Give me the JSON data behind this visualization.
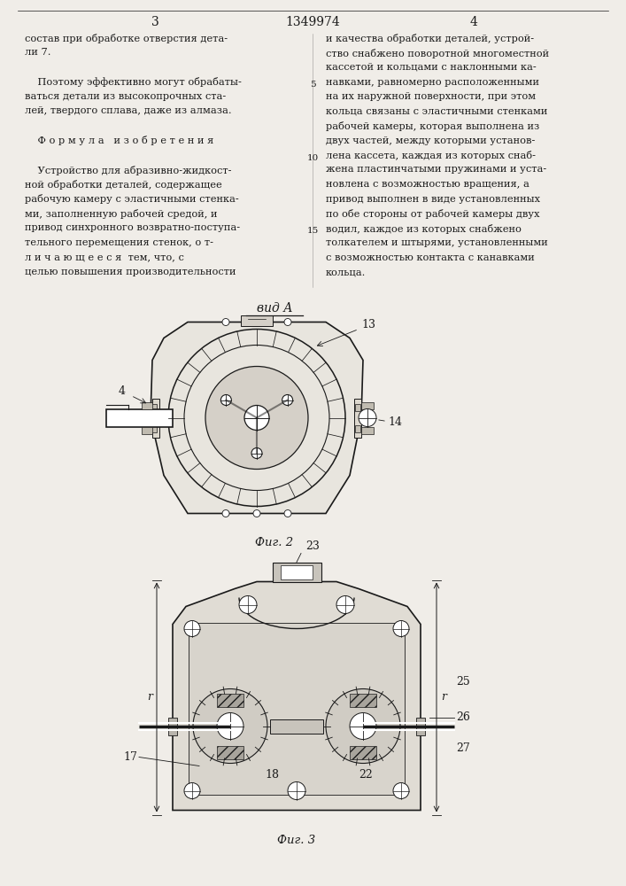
{
  "page_color": "#f0ede8",
  "text_color": "#1a1a1a",
  "page_num_left": "3",
  "page_num_center": "1349974",
  "page_num_right": "4",
  "col1_lines": [
    "состав при обработке отверстия дета-",
    "ли 7.",
    "",
    "    Поэтому эффективно могут обрабаты-",
    "ваться детали из высокопрочных ста-",
    "лей, твердого сплава, даже из алмаза.",
    "",
    "    Ф о р м у л а   и з о б р е т е н и я",
    "",
    "    Устройство для абразивно-жидкост-",
    "ной обработки деталей, содержащее",
    "рабочую камеру с эластичными стенка-",
    "ми, заполненную рабочей средой, и",
    "привод синхронного возвратно-поступа-",
    "тельного перемещения стенок, о т-",
    "л и ч а ю щ е е с я  тем, что, с",
    "целью повышения производительности"
  ],
  "col2_lines": [
    "и качества обработки деталей, устрой-",
    "ство снабжено поворотной многоместной",
    "кассетой и кольцами с наклонными ка-",
    "навками, равномерно расположенными",
    "на их наружной поверхности, при этом",
    "кольца связаны с эластичными стенками",
    "рабочей камеры, которая выполнена из",
    "двух частей, между которыми установ-",
    "лена кассета, каждая из которых снаб-",
    "жена пластинчатыми пружинами и уста-",
    "новлена с возможностью вращения, а",
    "привод выполнен в виде установленных",
    "по обе стороны от рабочей камеры двух",
    "водил, каждое из которых снабжено",
    "толкателем и штырями, установленными",
    "с возможностью контакта с канавками",
    "кольца."
  ],
  "vid_label": "вид А",
  "fig2_label": "Фиг. 2",
  "fig3_label": "Фиг. 3"
}
